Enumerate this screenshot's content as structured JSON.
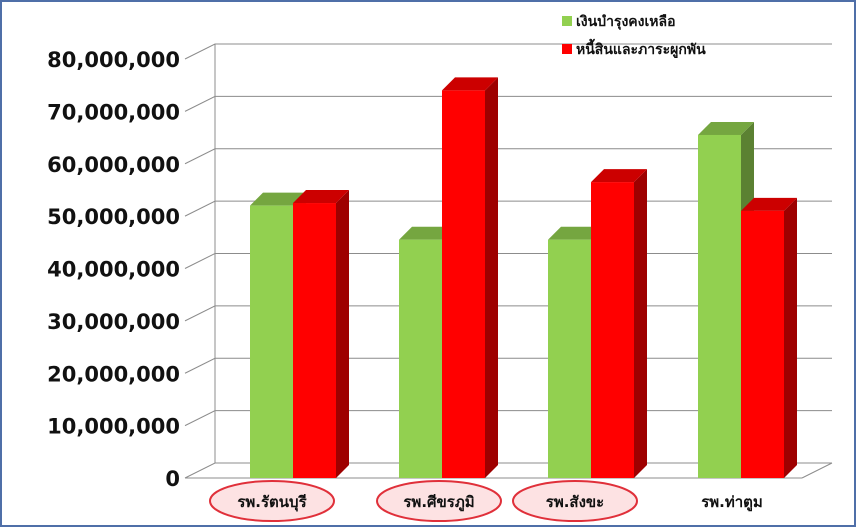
{
  "chart_data": {
    "type": "bar",
    "title": "",
    "xlabel": "",
    "ylabel": "",
    "ylim": [
      0,
      80000000
    ],
    "yticks": [
      "0",
      "10,000,000",
      "20,000,000",
      "30,000,000",
      "40,000,000",
      "50,000,000",
      "60,000,000",
      "70,000,000",
      "80,000,000"
    ],
    "categories": [
      "รพ.รัตนบุรี",
      "รพ.ศีขรภูมิ",
      "รพ.สังขะ",
      "รพ.ท่าตูม"
    ],
    "highlighted_categories": [
      "รพ.รัตนบุรี",
      "รพ.ศีขรภูมิ",
      "รพ.สังขะ"
    ],
    "grid": true,
    "legend_position": "top-right",
    "series": [
      {
        "name": "เงินบำรุงคงเหลือ",
        "color": "#92d050",
        "values": [
          52000000,
          45500000,
          45500000,
          65500000
        ]
      },
      {
        "name": "หนี้สินและภาระผูกพัน",
        "color": "#ff0000",
        "values": [
          52500000,
          74000000,
          56500000,
          51000000
        ]
      }
    ]
  },
  "colors": {
    "frame": "#4f6fa8",
    "highlight_ring": "#e0303a",
    "highlight_fill": "#fde2e3"
  }
}
